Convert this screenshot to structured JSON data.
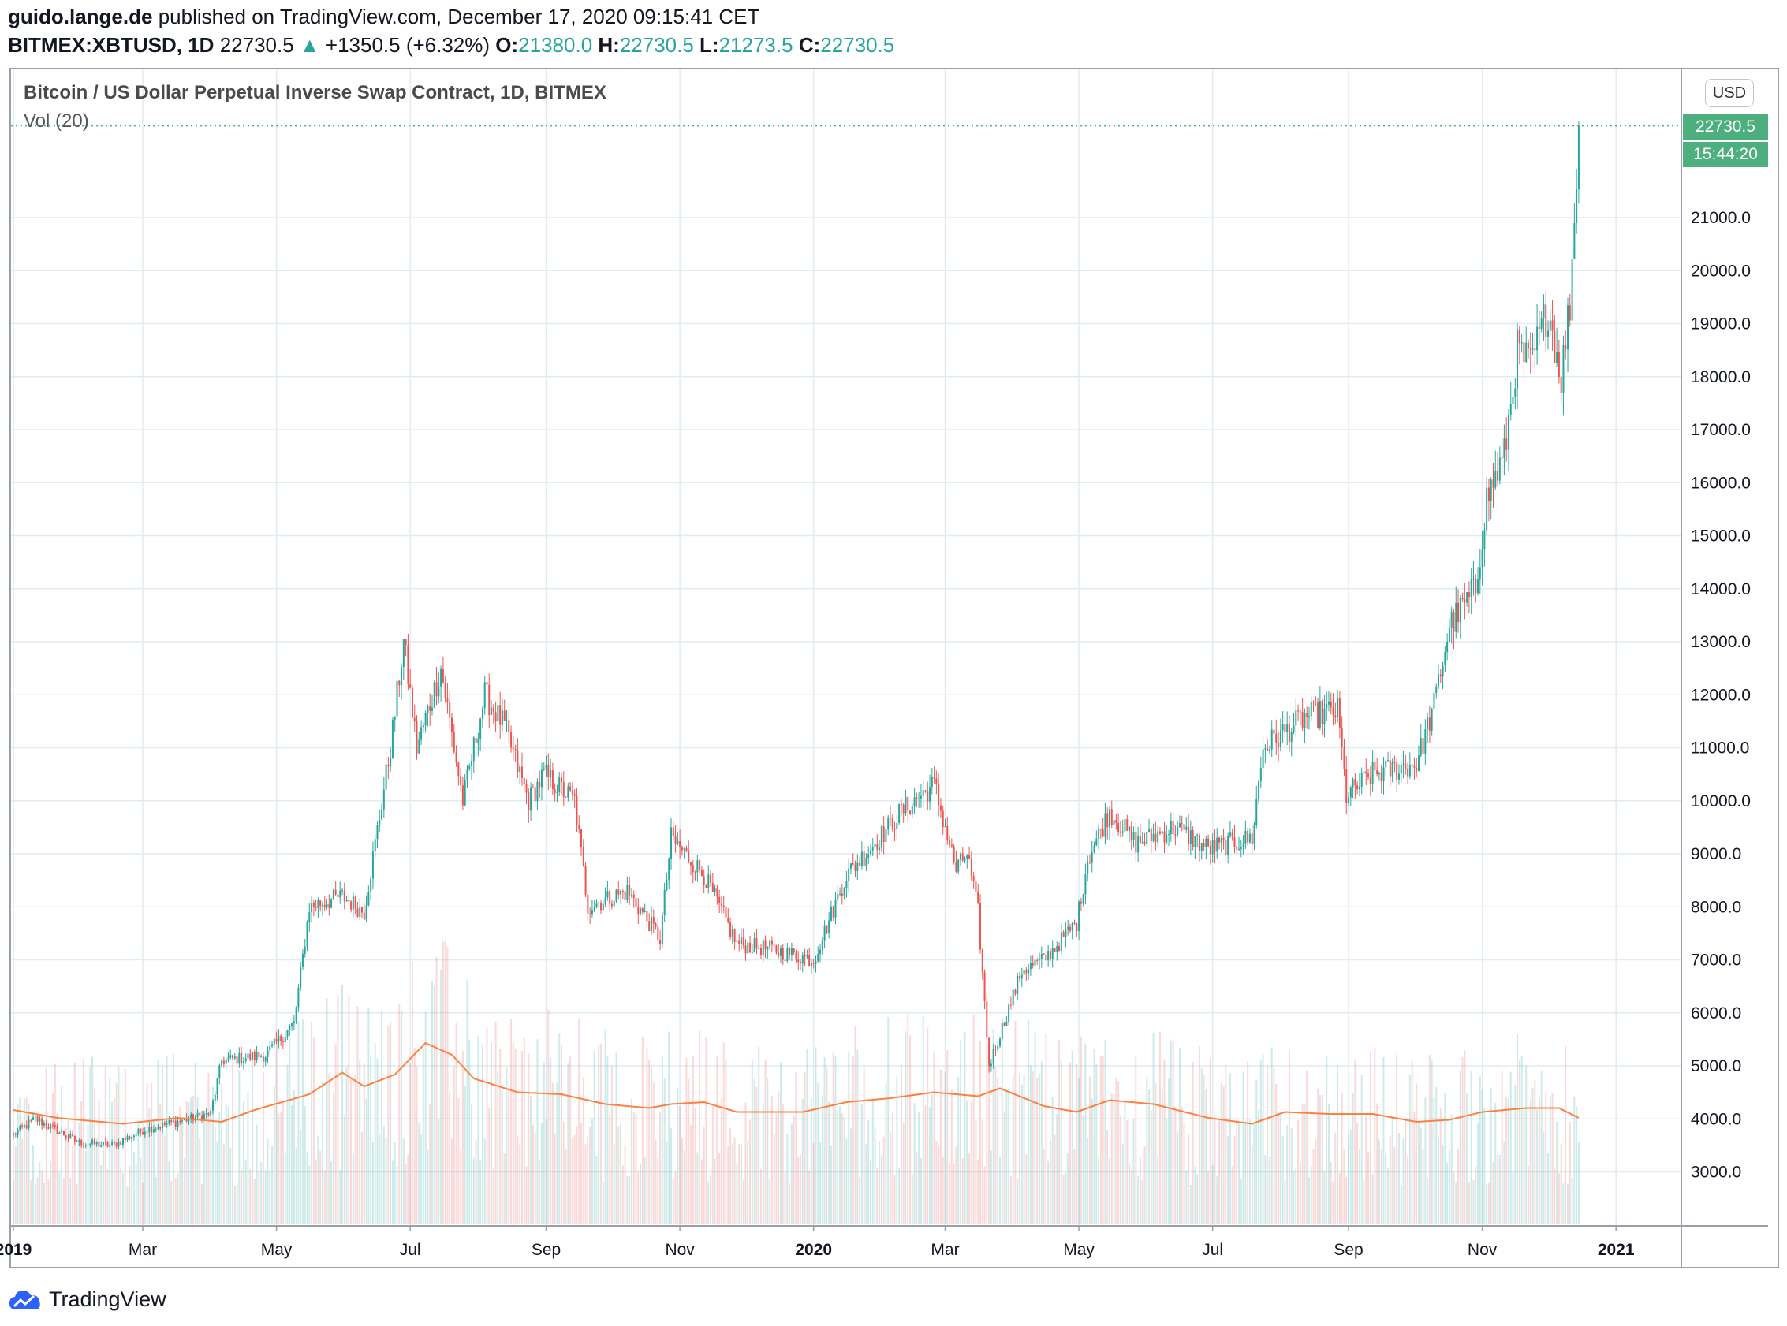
{
  "header": {
    "author": "guido.lange.de",
    "published": "published on TradingView.com, December 17, 2020 09:15:41 CET",
    "symbol": "BITMEX:XBTUSD, 1D",
    "last": "22730.5",
    "change": "+1350.5 (+6.32%)",
    "o_label": "O:",
    "o_value": "21380.0",
    "h_label": "H:",
    "h_value": "22730.5",
    "l_label": "L:",
    "l_value": "21273.5",
    "c_label": "C:",
    "c_value": "22730.5"
  },
  "pane": {
    "title": "Bitcoin / US Dollar Perpetual Inverse Swap Contract, 1D, BITMEX",
    "volume_label": "Vol (20)",
    "currency": "USD",
    "last_price_tag": "22730.5",
    "countdown_tag": "15:44:20"
  },
  "footer": {
    "brand": "TradingView"
  },
  "colors": {
    "up": "#26a69a",
    "down": "#ef5350",
    "vol_ma": "#ff7f3f",
    "grid": "#e1ecf2",
    "tag": "#4caf7d"
  },
  "chart_data": {
    "type": "candlestick",
    "title": "Bitcoin / US Dollar Perpetual Inverse Swap Contract, 1D, BITMEX",
    "ylim": [
      2000,
      23000
    ],
    "y_ticks": [
      "3000.0",
      "4000.0",
      "5000.0",
      "6000.0",
      "7000.0",
      "8000.0",
      "9000.0",
      "10000.0",
      "11000.0",
      "12000.0",
      "13000.0",
      "14000.0",
      "15000.0",
      "16000.0",
      "17000.0",
      "18000.0",
      "19000.0",
      "20000.0",
      "21000.0"
    ],
    "x_ticks": [
      {
        "label": "2019",
        "bold": true,
        "day": 0
      },
      {
        "label": "Mar",
        "bold": false,
        "day": 59
      },
      {
        "label": "May",
        "bold": false,
        "day": 120
      },
      {
        "label": "Jul",
        "bold": false,
        "day": 181
      },
      {
        "label": "Sep",
        "bold": false,
        "day": 243
      },
      {
        "label": "Nov",
        "bold": false,
        "day": 304
      },
      {
        "label": "2020",
        "bold": true,
        "day": 365
      },
      {
        "label": "Mar",
        "bold": false,
        "day": 425
      },
      {
        "label": "May",
        "bold": false,
        "day": 486
      },
      {
        "label": "Jul",
        "bold": false,
        "day": 547
      },
      {
        "label": "Sep",
        "bold": false,
        "day": 609
      },
      {
        "label": "Nov",
        "bold": false,
        "day": 670
      },
      {
        "label": "2021",
        "bold": true,
        "day": 731
      }
    ],
    "series_close_anchors": [
      [
        0,
        3700
      ],
      [
        10,
        4000
      ],
      [
        30,
        3550
      ],
      [
        45,
        3500
      ],
      [
        60,
        3800
      ],
      [
        75,
        3950
      ],
      [
        90,
        4100
      ],
      [
        95,
        5100
      ],
      [
        115,
        5200
      ],
      [
        128,
        5800
      ],
      [
        135,
        8000
      ],
      [
        150,
        8200
      ],
      [
        160,
        7900
      ],
      [
        172,
        11000
      ],
      [
        178,
        13000
      ],
      [
        184,
        11000
      ],
      [
        195,
        12500
      ],
      [
        205,
        10000
      ],
      [
        215,
        12000
      ],
      [
        224,
        11400
      ],
      [
        235,
        10000
      ],
      [
        242,
        10500
      ],
      [
        256,
        10000
      ],
      [
        262,
        8000
      ],
      [
        280,
        8300
      ],
      [
        295,
        7400
      ],
      [
        300,
        9300
      ],
      [
        315,
        8600
      ],
      [
        330,
        7300
      ],
      [
        345,
        7200
      ],
      [
        365,
        7000
      ],
      [
        380,
        8600
      ],
      [
        395,
        9300
      ],
      [
        405,
        9800
      ],
      [
        420,
        10300
      ],
      [
        430,
        8700
      ],
      [
        435,
        9000
      ],
      [
        440,
        7900
      ],
      [
        445,
        5000
      ],
      [
        460,
        6800
      ],
      [
        470,
        7000
      ],
      [
        485,
        7700
      ],
      [
        490,
        8900
      ],
      [
        500,
        9800
      ],
      [
        512,
        9200
      ],
      [
        530,
        9500
      ],
      [
        545,
        9100
      ],
      [
        556,
        9200
      ],
      [
        565,
        9300
      ],
      [
        570,
        11000
      ],
      [
        590,
        11600
      ],
      [
        604,
        11700
      ],
      [
        608,
        10100
      ],
      [
        620,
        10500
      ],
      [
        640,
        10700
      ],
      [
        648,
        11800
      ],
      [
        655,
        13300
      ],
      [
        667,
        14000
      ],
      [
        672,
        15700
      ],
      [
        680,
        16500
      ],
      [
        686,
        18500
      ],
      [
        692,
        18200
      ],
      [
        700,
        19300
      ],
      [
        706,
        18000
      ],
      [
        710,
        19400
      ],
      [
        712,
        21000
      ],
      [
        714,
        22730
      ]
    ],
    "volume_ma_anchors": [
      [
        0,
        2900
      ],
      [
        20,
        2700
      ],
      [
        50,
        2550
      ],
      [
        75,
        2700
      ],
      [
        95,
        2600
      ],
      [
        110,
        2900
      ],
      [
        135,
        3300
      ],
      [
        150,
        3850
      ],
      [
        160,
        3500
      ],
      [
        174,
        3800
      ],
      [
        188,
        4600
      ],
      [
        200,
        4300
      ],
      [
        210,
        3700
      ],
      [
        230,
        3350
      ],
      [
        250,
        3300
      ],
      [
        270,
        3050
      ],
      [
        290,
        2950
      ],
      [
        300,
        3050
      ],
      [
        315,
        3100
      ],
      [
        330,
        2850
      ],
      [
        360,
        2850
      ],
      [
        380,
        3100
      ],
      [
        400,
        3200
      ],
      [
        420,
        3350
      ],
      [
        440,
        3250
      ],
      [
        450,
        3450
      ],
      [
        470,
        3000
      ],
      [
        485,
        2850
      ],
      [
        500,
        3150
      ],
      [
        520,
        3050
      ],
      [
        545,
        2700
      ],
      [
        565,
        2550
      ],
      [
        580,
        2850
      ],
      [
        600,
        2800
      ],
      [
        620,
        2800
      ],
      [
        640,
        2600
      ],
      [
        655,
        2650
      ],
      [
        670,
        2850
      ],
      [
        690,
        2950
      ],
      [
        705,
        2950
      ],
      [
        714,
        2700
      ]
    ],
    "volume_scale_max": 5200
  }
}
